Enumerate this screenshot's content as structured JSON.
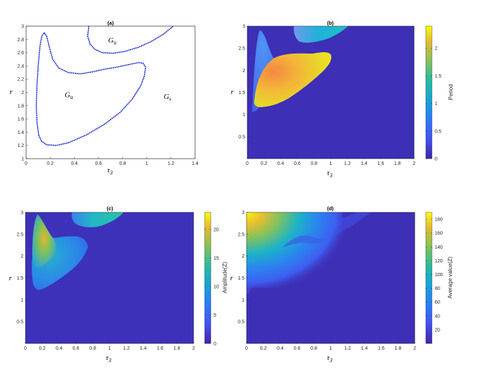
{
  "chart_data": [
    {
      "id": "a",
      "type": "line",
      "title": "(a)",
      "xlabel": "τ",
      "xlabel_sub": "3",
      "ylabel": "r",
      "xlim": [
        0,
        1.4
      ],
      "ylim": [
        1,
        3
      ],
      "xticks": [
        "0",
        "0.2",
        "0.4",
        "0.6",
        "0.8",
        "1",
        "1.2",
        "1.4"
      ],
      "yticks": [
        "1",
        "1.2",
        "1.4",
        "1.6",
        "1.8",
        "2",
        "2.2",
        "2.4",
        "2.6",
        "2.8",
        "3"
      ],
      "line_color": "#1f2fd0",
      "annotations": [
        {
          "label": "G",
          "sub": "u",
          "x": 0.68,
          "y": 2.75
        },
        {
          "label": "G",
          "sub": "u",
          "x": 0.32,
          "y": 1.93
        },
        {
          "label": "G",
          "sub": "s",
          "x": 1.14,
          "y": 1.9
        }
      ],
      "series": [
        {
          "points": [
            [
              0.105,
              1.35
            ],
            [
              0.09,
              1.55
            ],
            [
              0.085,
              1.8
            ],
            [
              0.09,
              2.1
            ],
            [
              0.1,
              2.4
            ],
            [
              0.115,
              2.7
            ],
            [
              0.13,
              2.85
            ],
            [
              0.15,
              2.9
            ],
            [
              0.17,
              2.85
            ],
            [
              0.19,
              2.7
            ],
            [
              0.22,
              2.5
            ],
            [
              0.27,
              2.37
            ],
            [
              0.35,
              2.3
            ],
            [
              0.45,
              2.28
            ],
            [
              0.55,
              2.31
            ],
            [
              0.65,
              2.35
            ],
            [
              0.75,
              2.38
            ],
            [
              0.85,
              2.42
            ],
            [
              0.93,
              2.45
            ],
            [
              0.97,
              2.44
            ],
            [
              0.99,
              2.38
            ],
            [
              0.98,
              2.25
            ],
            [
              0.95,
              2.1
            ],
            [
              0.88,
              1.9
            ],
            [
              0.78,
              1.7
            ],
            [
              0.65,
              1.52
            ],
            [
              0.5,
              1.36
            ],
            [
              0.35,
              1.24
            ],
            [
              0.25,
              1.2
            ],
            [
              0.17,
              1.21
            ],
            [
              0.13,
              1.26
            ],
            [
              0.105,
              1.35
            ]
          ]
        },
        {
          "points": [
            [
              0.52,
              3.0
            ],
            [
              0.51,
              2.85
            ],
            [
              0.53,
              2.73
            ],
            [
              0.57,
              2.65
            ],
            [
              0.63,
              2.6
            ],
            [
              0.72,
              2.59
            ],
            [
              0.82,
              2.62
            ],
            [
              0.93,
              2.68
            ],
            [
              1.04,
              2.77
            ],
            [
              1.14,
              2.88
            ],
            [
              1.22,
              3.0
            ]
          ]
        }
      ]
    },
    {
      "id": "b",
      "type": "heatmap",
      "title": "(b)",
      "xlabel": "τ",
      "xlabel_sub": "3",
      "ylabel": "r",
      "xlim": [
        0,
        2
      ],
      "ylim": [
        0,
        3
      ],
      "xticks": [
        "0",
        "0.2",
        "0.4",
        "0.6",
        "0.8",
        "1",
        "1.2",
        "1.4",
        "1.6",
        "1.8",
        "2"
      ],
      "yticks": [
        "0.5",
        "1",
        "1.5",
        "2",
        "2.5",
        "3"
      ],
      "colorbar_label": "Period",
      "colorbar_range": [
        0,
        2.4
      ],
      "colorbar_ticks": [
        "0",
        "0.5",
        "1",
        "1.5",
        "2"
      ],
      "background_value": 0.1
    },
    {
      "id": "c",
      "type": "heatmap",
      "title": "(c)",
      "xlabel": "τ",
      "xlabel_sub": "3",
      "ylabel": "r",
      "xlim": [
        0,
        2
      ],
      "ylim": [
        0,
        3
      ],
      "xticks": [
        "0",
        "0.2",
        "0.4",
        "0.6",
        "0.8",
        "1",
        "1.2",
        "1.4",
        "1.6",
        "1.8",
        "2"
      ],
      "yticks": [
        "0.5",
        "1",
        "1.5",
        "2",
        "2.5",
        "3"
      ],
      "colorbar_label": "Amplitude(Z)",
      "colorbar_range": [
        0,
        23
      ],
      "colorbar_ticks": [
        "0",
        "5",
        "10",
        "15",
        "20"
      ],
      "background_value": 1
    },
    {
      "id": "d",
      "type": "heatmap",
      "title": "(d)",
      "xlabel": "τ",
      "xlabel_sub": "3",
      "ylabel": "r",
      "xlim": [
        0,
        2
      ],
      "ylim": [
        0,
        3
      ],
      "xticks": [
        "0",
        "0.2",
        "0.4",
        "0.6",
        "0.8",
        "1",
        "1.2",
        "1.4",
        "1.6",
        "1.8",
        "2"
      ],
      "yticks": [
        "0.5",
        "1",
        "1.5",
        "2",
        "2.5",
        "3"
      ],
      "colorbar_label": "Average value(Z)",
      "colorbar_range": [
        0,
        190
      ],
      "colorbar_ticks": [
        "20",
        "40",
        "60",
        "80",
        "100",
        "120",
        "140",
        "160",
        "180"
      ],
      "background_value": 5
    }
  ]
}
